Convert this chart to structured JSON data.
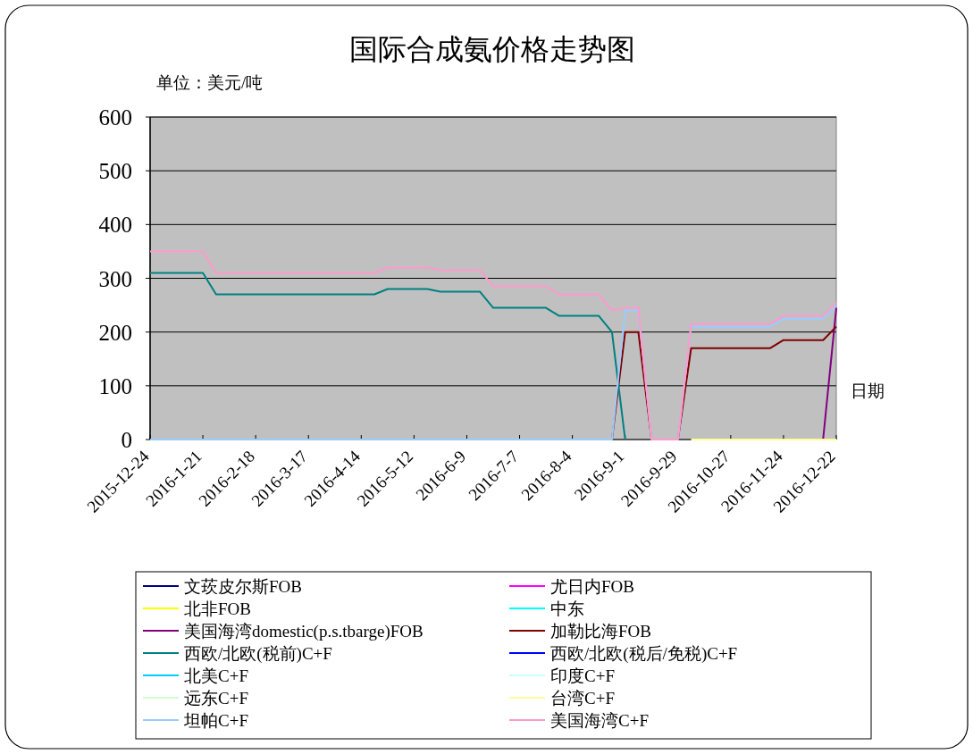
{
  "chart_data": {
    "type": "line",
    "title": "国际合成氨价格走势图",
    "ylabel": "单位：美元/吨",
    "xlabel": "日期",
    "categories": [
      "2015-12-24",
      null,
      null,
      null,
      "2016-1-21",
      null,
      null,
      null,
      "2016-2-18",
      null,
      null,
      null,
      "2016-3-17",
      null,
      null,
      null,
      "2016-4-14",
      null,
      null,
      null,
      "2016-5-12",
      null,
      null,
      null,
      "2016-6-9",
      null,
      null,
      null,
      "2016-7-7",
      null,
      null,
      null,
      "2016-8-4",
      null,
      null,
      null,
      "2016-9-1",
      null,
      null,
      null,
      "2016-9-29",
      null,
      null,
      null,
      "2016-10-27",
      null,
      null,
      null,
      "2016-11-24",
      null,
      null,
      null,
      "2016-12-22"
    ],
    "ylim": [
      0,
      600
    ],
    "yticks": [
      0,
      100,
      200,
      300,
      400,
      500,
      600
    ],
    "grid": "y",
    "legend": "bottom",
    "marker": "none",
    "line_style": "solid",
    "series": [
      {
        "name": "文莰皮尔斯FOB",
        "color": "#000080",
        "values": [
          null,
          null,
          null,
          null,
          null,
          null,
          null,
          null,
          null,
          null,
          null,
          null,
          null,
          null,
          null,
          null,
          null,
          null,
          null,
          null,
          null,
          null,
          null,
          null,
          null,
          null,
          null,
          null,
          null,
          null,
          null,
          null,
          null,
          null,
          null,
          null,
          null,
          null,
          null,
          null,
          null,
          null,
          null,
          null,
          null,
          null,
          null,
          null,
          null,
          null,
          null,
          null,
          null
        ]
      },
      {
        "name": "尤日内FOB",
        "color": "#ff00ff",
        "values": [
          null,
          null,
          null,
          null,
          null,
          null,
          null,
          null,
          null,
          null,
          null,
          null,
          null,
          null,
          null,
          null,
          null,
          null,
          null,
          null,
          null,
          null,
          null,
          null,
          null,
          null,
          null,
          null,
          null,
          null,
          null,
          null,
          null,
          null,
          null,
          null,
          null,
          null,
          null,
          null,
          null,
          null,
          null,
          null,
          null,
          null,
          null,
          null,
          null,
          null,
          null,
          null,
          null
        ]
      },
      {
        "name": "北非FOB",
        "color": "#ffff00",
        "values": [
          null,
          null,
          null,
          null,
          null,
          null,
          null,
          null,
          null,
          null,
          null,
          null,
          null,
          null,
          null,
          null,
          null,
          null,
          null,
          null,
          null,
          null,
          null,
          null,
          null,
          null,
          null,
          null,
          null,
          null,
          null,
          null,
          null,
          null,
          null,
          null,
          null,
          null,
          null,
          null,
          null,
          null,
          null,
          null,
          null,
          null,
          null,
          null,
          null,
          null,
          null,
          null,
          null
        ]
      },
      {
        "name": "中东",
        "color": "#00ffff",
        "values": [
          null,
          null,
          null,
          null,
          null,
          null,
          null,
          null,
          null,
          null,
          null,
          null,
          null,
          null,
          null,
          null,
          null,
          null,
          null,
          null,
          null,
          null,
          null,
          null,
          null,
          null,
          null,
          null,
          null,
          null,
          null,
          null,
          null,
          null,
          null,
          null,
          null,
          null,
          null,
          null,
          null,
          null,
          null,
          null,
          null,
          null,
          null,
          null,
          null,
          null,
          null,
          null,
          null
        ]
      },
      {
        "name": "美国海湾domestic(p.s.tbarge)FOB",
        "color": "#800080",
        "values": [
          null,
          null,
          null,
          null,
          null,
          null,
          null,
          null,
          null,
          null,
          null,
          null,
          null,
          null,
          null,
          null,
          null,
          null,
          null,
          null,
          null,
          null,
          null,
          null,
          null,
          null,
          null,
          null,
          null,
          null,
          null,
          null,
          null,
          null,
          null,
          null,
          null,
          null,
          null,
          null,
          null,
          null,
          null,
          null,
          null,
          null,
          null,
          null,
          null,
          null,
          null,
          0,
          245
        ]
      },
      {
        "name": "加勒比海FOB",
        "color": "#800000",
        "values": [
          null,
          null,
          null,
          null,
          null,
          null,
          null,
          null,
          null,
          null,
          null,
          null,
          null,
          null,
          null,
          null,
          null,
          null,
          null,
          null,
          null,
          null,
          null,
          null,
          null,
          null,
          null,
          null,
          null,
          null,
          null,
          null,
          null,
          null,
          null,
          0,
          200,
          200,
          0,
          0,
          0,
          170,
          170,
          170,
          170,
          170,
          170,
          170,
          185,
          185,
          185,
          185,
          210
        ]
      },
      {
        "name": "西欧/北欧(税前)C+F",
        "color": "#008080",
        "values": [
          310,
          310,
          310,
          310,
          310,
          270,
          270,
          270,
          270,
          270,
          270,
          270,
          270,
          270,
          270,
          270,
          270,
          270,
          280,
          280,
          280,
          280,
          275,
          275,
          275,
          275,
          245,
          245,
          245,
          245,
          245,
          230,
          230,
          230,
          230,
          200,
          0,
          null,
          null,
          null,
          null,
          null,
          null,
          null,
          null,
          null,
          null,
          null,
          null,
          null,
          null,
          null,
          null
        ]
      },
      {
        "name": "西欧/北欧(税后/免税)C+F",
        "color": "#0000ff",
        "values": [
          null,
          null,
          null,
          null,
          null,
          null,
          null,
          null,
          null,
          null,
          null,
          null,
          null,
          null,
          null,
          null,
          null,
          null,
          null,
          null,
          null,
          null,
          null,
          null,
          null,
          null,
          null,
          null,
          null,
          null,
          null,
          null,
          null,
          null,
          null,
          null,
          null,
          null,
          null,
          null,
          null,
          null,
          null,
          null,
          null,
          null,
          null,
          null,
          null,
          null,
          null,
          null,
          null
        ]
      },
      {
        "name": "北美C+F",
        "color": "#00ccff",
        "values": [
          null,
          null,
          null,
          null,
          null,
          null,
          null,
          null,
          null,
          null,
          null,
          null,
          null,
          null,
          null,
          null,
          null,
          null,
          null,
          null,
          null,
          null,
          null,
          null,
          null,
          null,
          null,
          null,
          null,
          null,
          null,
          null,
          null,
          null,
          null,
          null,
          null,
          null,
          null,
          null,
          null,
          null,
          null,
          null,
          null,
          null,
          null,
          null,
          null,
          null,
          null,
          null,
          null
        ]
      },
      {
        "name": "印度C+F",
        "color": "#ccffff",
        "values": [
          null,
          null,
          null,
          null,
          null,
          null,
          null,
          null,
          null,
          null,
          null,
          null,
          null,
          null,
          null,
          null,
          null,
          null,
          null,
          null,
          null,
          null,
          null,
          null,
          null,
          null,
          null,
          null,
          null,
          null,
          null,
          null,
          null,
          null,
          null,
          null,
          null,
          null,
          null,
          null,
          null,
          null,
          null,
          null,
          null,
          null,
          null,
          null,
          null,
          null,
          null,
          null,
          null
        ]
      },
      {
        "name": "远东C+F",
        "color": "#ccffcc",
        "values": [
          null,
          null,
          null,
          null,
          null,
          null,
          null,
          null,
          null,
          null,
          null,
          null,
          null,
          null,
          null,
          null,
          null,
          null,
          null,
          null,
          null,
          null,
          null,
          null,
          null,
          null,
          null,
          null,
          null,
          null,
          null,
          null,
          null,
          null,
          null,
          null,
          null,
          null,
          null,
          null,
          null,
          null,
          null,
          null,
          null,
          null,
          null,
          null,
          null,
          null,
          null,
          null,
          null
        ]
      },
      {
        "name": "台湾C+F",
        "color": "#ffff99",
        "values": [
          null,
          null,
          null,
          null,
          null,
          null,
          null,
          null,
          null,
          null,
          null,
          null,
          null,
          null,
          null,
          null,
          null,
          null,
          null,
          null,
          null,
          null,
          null,
          null,
          null,
          null,
          null,
          null,
          null,
          null,
          null,
          null,
          null,
          null,
          null,
          null,
          null,
          null,
          null,
          null,
          null,
          0,
          0,
          0,
          0,
          0,
          0,
          0,
          0,
          0,
          0,
          0,
          0
        ]
      },
      {
        "name": "坦帕C+F",
        "color": "#99ccff",
        "values": [
          0,
          0,
          0,
          0,
          0,
          0,
          0,
          0,
          0,
          0,
          0,
          0,
          0,
          0,
          0,
          0,
          0,
          0,
          0,
          0,
          0,
          0,
          0,
          0,
          0,
          0,
          0,
          0,
          0,
          0,
          0,
          0,
          0,
          0,
          0,
          0,
          240,
          240,
          0,
          0,
          0,
          210,
          210,
          210,
          210,
          210,
          210,
          210,
          225,
          225,
          225,
          225,
          250
        ]
      },
      {
        "name": "美国海湾C+F",
        "color": "#ff99cc",
        "values": [
          350,
          350,
          350,
          350,
          350,
          310,
          310,
          310,
          310,
          310,
          310,
          310,
          310,
          310,
          310,
          310,
          310,
          310,
          320,
          320,
          320,
          320,
          315,
          315,
          315,
          315,
          285,
          285,
          285,
          285,
          285,
          270,
          270,
          270,
          270,
          240,
          245,
          245,
          0,
          0,
          0,
          215,
          215,
          215,
          215,
          215,
          215,
          215,
          230,
          230,
          230,
          230,
          255
        ]
      }
    ]
  }
}
